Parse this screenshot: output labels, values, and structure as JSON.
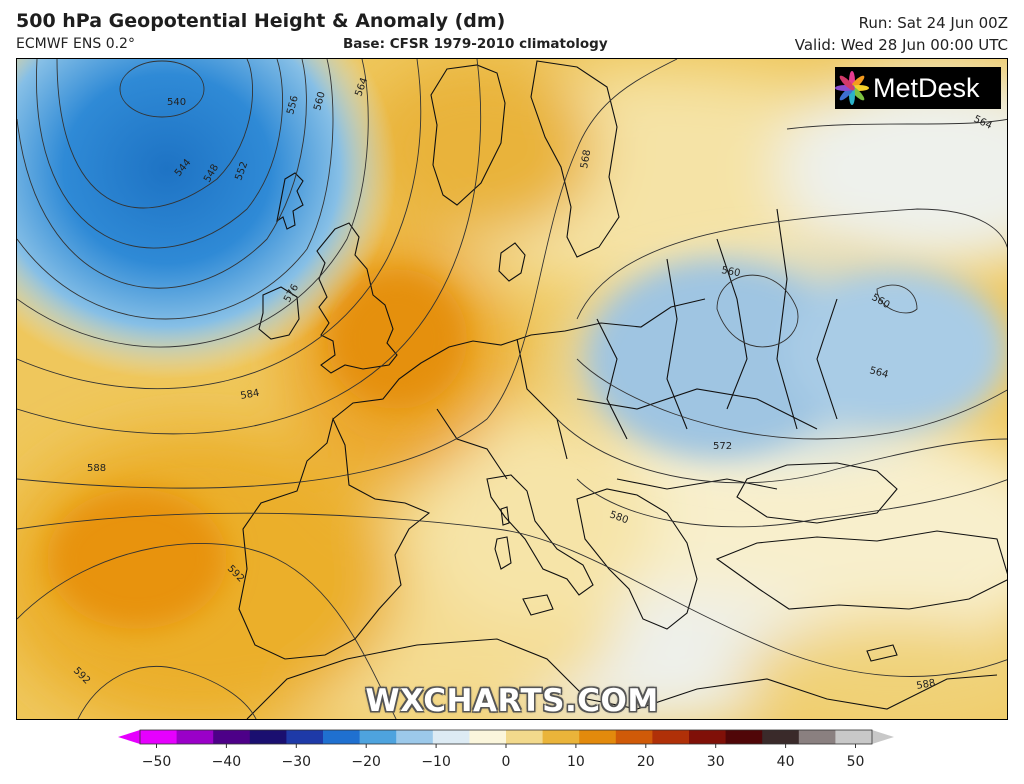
{
  "header": {
    "title": "500 hPa Geopotential Height & Anomaly (dm)",
    "model": "ECMWF ENS 0.2°",
    "base": "Base: CFSR 1979-2010 climatology",
    "run": "Run: Sat 24 Jun 00Z",
    "valid": "Valid: Wed 28 Jun 00:00 UTC"
  },
  "logo": {
    "text": "MetDesk",
    "icon": "flower-logo-icon"
  },
  "watermark": "WXCHARTS.COM",
  "contour_labels": [
    {
      "text": "540"
    },
    {
      "text": "544"
    },
    {
      "text": "548"
    },
    {
      "text": "552"
    },
    {
      "text": "556"
    },
    {
      "text": "560"
    },
    {
      "text": "564"
    },
    {
      "text": "568"
    },
    {
      "text": "576"
    },
    {
      "text": "584"
    },
    {
      "text": "588"
    },
    {
      "text": "592"
    },
    {
      "text": "560"
    },
    {
      "text": "560"
    },
    {
      "text": "564"
    },
    {
      "text": "564"
    },
    {
      "text": "572"
    },
    {
      "text": "580"
    },
    {
      "text": "588"
    },
    {
      "text": "592"
    }
  ],
  "colorbar": {
    "ticks": [
      "−50",
      "−40",
      "−30",
      "−20",
      "−10",
      "0",
      "10",
      "20",
      "30",
      "40",
      "50"
    ],
    "colors": [
      "#e600ff",
      "#9a00c8",
      "#4d0088",
      "#1a0f70",
      "#1e3aa8",
      "#1f70d0",
      "#4ea3de",
      "#9cc9ea",
      "#ddebf4",
      "#fbf6dc",
      "#f2d98c",
      "#eab43a",
      "#e38a0c",
      "#d05a08",
      "#b03008",
      "#801008",
      "#500608",
      "#3a2a2a",
      "#8a8080",
      "#c8c8c8"
    ]
  }
}
